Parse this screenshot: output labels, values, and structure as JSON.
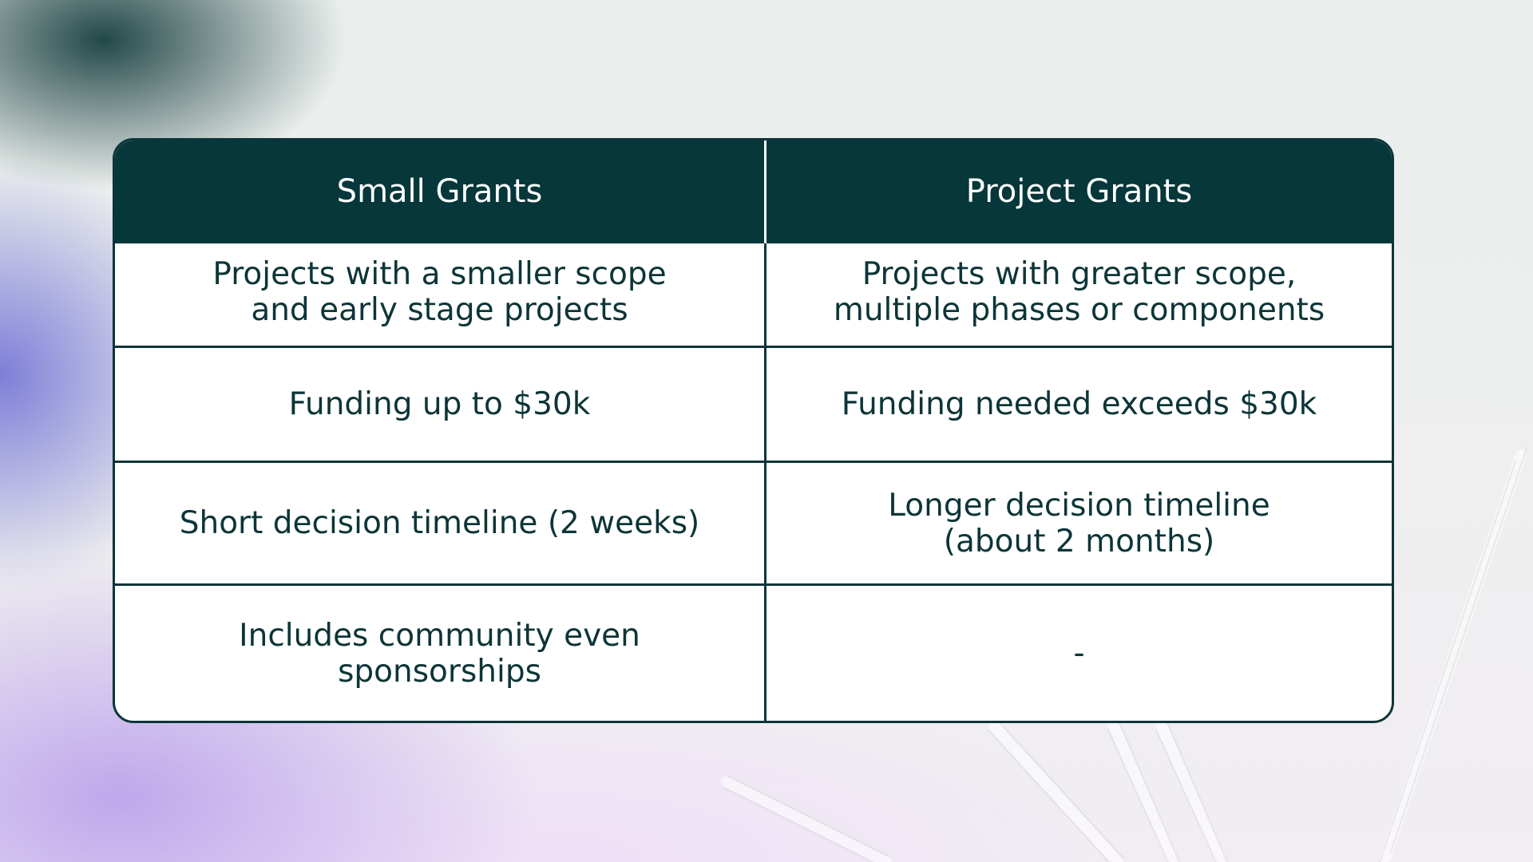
{
  "table": {
    "headers": [
      "Small Grants",
      "Project Grants"
    ],
    "rows": [
      [
        "Projects with a smaller scope\nand early stage projects",
        "Projects with greater scope,\nmultiple phases or components"
      ],
      [
        "Funding up to $30k",
        "Funding needed exceeds $30k"
      ],
      [
        "Short decision timeline (2 weeks)",
        "Longer decision timeline\n(about 2 months)"
      ],
      [
        "Includes community even\nsponsorships",
        "-"
      ]
    ]
  },
  "colors": {
    "header_bg": "#06373a",
    "text": "#0d3538",
    "border": "#0d3538",
    "cell_bg": "#ffffff"
  }
}
